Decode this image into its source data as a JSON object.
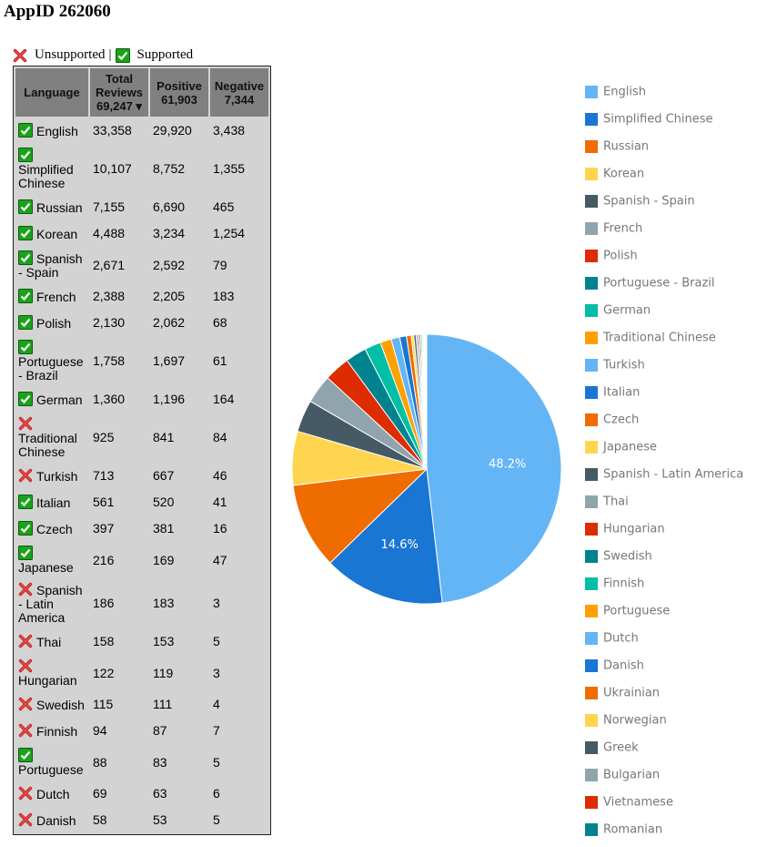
{
  "header": {
    "title": "AppID 262060",
    "legend_unsupported": "Unsupported",
    "legend_separator": "|",
    "legend_supported": "Supported"
  },
  "table": {
    "columns": [
      {
        "label": "Language"
      },
      {
        "label": "Total Reviews",
        "total": "69,247",
        "sort_indicator": "▾"
      },
      {
        "label": "Positive",
        "total": "61,903"
      },
      {
        "label": "Negative",
        "total": "7,344"
      }
    ],
    "rows": [
      {
        "language": "English",
        "supported": true,
        "total": "33,358",
        "positive": "29,920",
        "negative": "3,438"
      },
      {
        "language": "Simplified Chinese",
        "supported": true,
        "total": "10,107",
        "positive": "8,752",
        "negative": "1,355"
      },
      {
        "language": "Russian",
        "supported": true,
        "total": "7,155",
        "positive": "6,690",
        "negative": "465"
      },
      {
        "language": "Korean",
        "supported": true,
        "total": "4,488",
        "positive": "3,234",
        "negative": "1,254"
      },
      {
        "language": "Spanish - Spain",
        "supported": true,
        "total": "2,671",
        "positive": "2,592",
        "negative": "79"
      },
      {
        "language": "French",
        "supported": true,
        "total": "2,388",
        "positive": "2,205",
        "negative": "183"
      },
      {
        "language": "Polish",
        "supported": true,
        "total": "2,130",
        "positive": "2,062",
        "negative": "68"
      },
      {
        "language": "Portuguese - Brazil",
        "supported": true,
        "total": "1,758",
        "positive": "1,697",
        "negative": "61"
      },
      {
        "language": "German",
        "supported": true,
        "total": "1,360",
        "positive": "1,196",
        "negative": "164"
      },
      {
        "language": "Traditional Chinese",
        "supported": false,
        "total": "925",
        "positive": "841",
        "negative": "84"
      },
      {
        "language": "Turkish",
        "supported": false,
        "total": "713",
        "positive": "667",
        "negative": "46"
      },
      {
        "language": "Italian",
        "supported": true,
        "total": "561",
        "positive": "520",
        "negative": "41"
      },
      {
        "language": "Czech",
        "supported": true,
        "total": "397",
        "positive": "381",
        "negative": "16"
      },
      {
        "language": "Japanese",
        "supported": true,
        "total": "216",
        "positive": "169",
        "negative": "47"
      },
      {
        "language": "Spanish - Latin America",
        "supported": false,
        "total": "186",
        "positive": "183",
        "negative": "3"
      },
      {
        "language": "Thai",
        "supported": false,
        "total": "158",
        "positive": "153",
        "negative": "5"
      },
      {
        "language": "Hungarian",
        "supported": false,
        "total": "122",
        "positive": "119",
        "negative": "3"
      },
      {
        "language": "Swedish",
        "supported": false,
        "total": "115",
        "positive": "111",
        "negative": "4"
      },
      {
        "language": "Finnish",
        "supported": false,
        "total": "94",
        "positive": "87",
        "negative": "7"
      },
      {
        "language": "Portuguese",
        "supported": true,
        "total": "88",
        "positive": "83",
        "negative": "5"
      },
      {
        "language": "Dutch",
        "supported": false,
        "total": "69",
        "positive": "63",
        "negative": "6"
      },
      {
        "language": "Danish",
        "supported": false,
        "total": "58",
        "positive": "53",
        "negative": "5"
      }
    ]
  },
  "chart_data": {
    "type": "pie",
    "categories": [
      "English",
      "Simplified Chinese",
      "Russian",
      "Korean",
      "Spanish - Spain",
      "French",
      "Polish",
      "Portuguese - Brazil",
      "German",
      "Traditional Chinese",
      "Turkish",
      "Italian",
      "Czech",
      "Japanese",
      "Spanish - Latin America",
      "Thai",
      "Hungarian",
      "Swedish",
      "Finnish",
      "Portuguese",
      "Dutch",
      "Danish",
      "Ukrainian",
      "Norwegian",
      "Greek",
      "Bulgarian",
      "Vietnamese",
      "Romanian"
    ],
    "values": [
      48.2,
      14.6,
      10.33,
      6.48,
      3.86,
      3.45,
      3.08,
      2.54,
      1.96,
      1.34,
      1.03,
      0.81,
      0.57,
      0.31,
      0.27,
      0.23,
      0.18,
      0.17,
      0.14,
      0.13,
      0.1,
      0.08,
      0.07,
      0.05,
      0.04,
      0.03,
      0.03,
      0.02
    ],
    "value_labels": [
      "48.2%",
      "14.6%",
      null,
      null,
      null,
      null,
      null,
      null,
      null,
      null,
      null,
      null,
      null,
      null,
      null,
      null,
      null,
      null,
      null,
      null,
      null,
      null,
      null,
      null,
      null,
      null,
      null,
      null
    ],
    "colors": [
      "#64b5f6",
      "#1976d2",
      "#ef6c00",
      "#ffd54f",
      "#455a64",
      "#90a4ae",
      "#dd2c00",
      "#00838f",
      "#00bfa5",
      "#ffa000"
    ],
    "legend": "right"
  }
}
